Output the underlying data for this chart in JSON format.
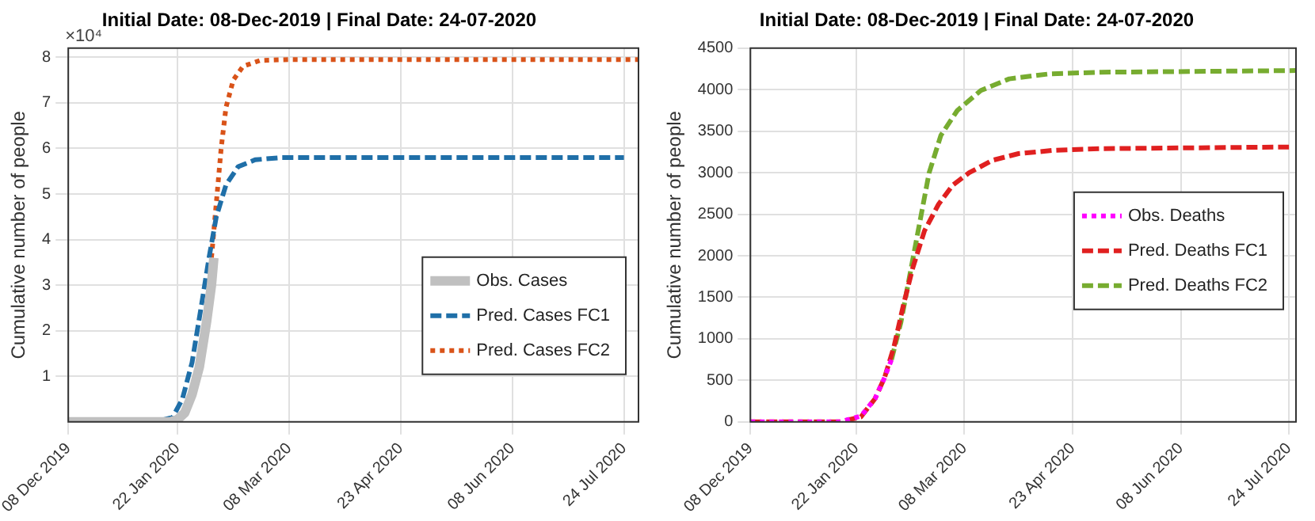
{
  "chart_data": [
    {
      "type": "line",
      "title": "Initial Date: 08-Dec-2019 | Final Date: 24-07-2020",
      "ylabel": "Cumulative number of people",
      "annotations": [
        "×10⁴"
      ],
      "grid": true,
      "legend": "bottom right",
      "xlim": [
        "2019-12-08",
        "2020-07-30"
      ],
      "xticks": [
        {
          "value": "2019-12-08",
          "label": "08 Dec 2019"
        },
        {
          "value": "2020-01-22",
          "label": "22 Jan 2020"
        },
        {
          "value": "2020-03-08",
          "label": "08 Mar 2020"
        },
        {
          "value": "2020-04-23",
          "label": "23 Apr 2020"
        },
        {
          "value": "2020-06-08",
          "label": "08 Jun 2020"
        },
        {
          "value": "2020-07-24",
          "label": "24 Jul 2020"
        }
      ],
      "ylim": [
        0,
        8.2
      ],
      "yticks": [
        1,
        2,
        3,
        4,
        5,
        6,
        7,
        8
      ],
      "series": [
        {
          "name": "Obs. Cases",
          "color": "#c0c0c0",
          "line_style": "solid",
          "x": [
            "2019-12-08",
            "2019-12-22",
            "2020-01-05",
            "2020-01-19",
            "2020-01-22",
            "2020-01-25",
            "2020-01-28",
            "2020-01-31",
            "2020-02-03",
            "2020-02-05",
            "2020-02-06"
          ],
          "values": [
            0,
            0,
            0,
            0,
            0.05,
            0.2,
            0.6,
            1.2,
            2.2,
            3.0,
            3.6
          ]
        },
        {
          "name": "Pred. Cases FC1",
          "color": "#1f6fa8",
          "line_style": "dashed",
          "x": [
            "2019-12-08",
            "2020-01-15",
            "2020-01-20",
            "2020-01-24",
            "2020-01-28",
            "2020-02-01",
            "2020-02-04",
            "2020-02-07",
            "2020-02-11",
            "2020-02-16",
            "2020-02-23",
            "2020-03-05",
            "2020-07-24"
          ],
          "values": [
            0,
            0.03,
            0.1,
            0.5,
            1.3,
            2.6,
            3.6,
            4.5,
            5.2,
            5.6,
            5.75,
            5.8,
            5.8
          ]
        },
        {
          "name": "Pred. Cases FC2",
          "color": "#d95319",
          "line_style": "dotted",
          "x": [
            "2020-02-05",
            "2020-02-07",
            "2020-02-09",
            "2020-02-11",
            "2020-02-14",
            "2020-02-18",
            "2020-02-25",
            "2020-03-08",
            "2020-07-30"
          ],
          "values": [
            3.6,
            4.8,
            6.0,
            6.9,
            7.5,
            7.8,
            7.93,
            7.95,
            7.95
          ]
        }
      ]
    },
    {
      "type": "line",
      "title": "Initial Date: 08-Dec-2019 | Final Date: 24-07-2020",
      "ylabel": "Cumulative number of people",
      "grid": true,
      "legend": "right",
      "xlim": [
        "2019-12-08",
        "2020-07-27"
      ],
      "xticks": [
        {
          "value": "2019-12-08",
          "label": "08 Dec 2019"
        },
        {
          "value": "2020-01-22",
          "label": "22 Jan 2020"
        },
        {
          "value": "2020-03-08",
          "label": "08 Mar 2020"
        },
        {
          "value": "2020-04-23",
          "label": "23 Apr 2020"
        },
        {
          "value": "2020-06-08",
          "label": "08 Jun 2020"
        },
        {
          "value": "2020-07-24",
          "label": "24 Jul 2020"
        }
      ],
      "ylim": [
        0,
        4500
      ],
      "yticks": [
        0,
        500,
        1000,
        1500,
        2000,
        2500,
        3000,
        3500,
        4000,
        4500
      ],
      "series": [
        {
          "name": "Obs. Deaths",
          "color": "#ff00ff",
          "line_style": "dotted",
          "x": [
            "2019-12-08",
            "2019-12-18",
            "2019-12-27",
            "2020-01-06",
            "2020-01-15",
            "2020-01-24",
            "2020-01-30",
            "2020-02-03",
            "2020-02-06"
          ],
          "values": [
            0,
            0,
            0,
            0,
            0,
            70,
            280,
            530,
            750
          ]
        },
        {
          "name": "Pred. Deaths FC1",
          "color": "#e02020",
          "line_style": "dashed",
          "x": [
            "2019-12-08",
            "2020-01-15",
            "2020-01-24",
            "2020-01-30",
            "2020-02-03",
            "2020-02-07",
            "2020-02-11",
            "2020-02-15",
            "2020-02-20",
            "2020-02-26",
            "2020-03-03",
            "2020-03-10",
            "2020-03-20",
            "2020-03-31",
            "2020-04-15",
            "2020-05-05",
            "2020-07-24"
          ],
          "values": [
            0,
            0,
            60,
            280,
            530,
            900,
            1400,
            1850,
            2300,
            2620,
            2850,
            3000,
            3150,
            3230,
            3270,
            3290,
            3310
          ]
        },
        {
          "name": "Pred. Deaths FC2",
          "color": "#77ac30",
          "line_style": "dashed",
          "x": [
            "2020-02-06",
            "2020-02-10",
            "2020-02-14",
            "2020-02-18",
            "2020-02-22",
            "2020-02-27",
            "2020-03-05",
            "2020-03-15",
            "2020-03-27",
            "2020-04-13",
            "2020-05-05",
            "2020-07-27"
          ],
          "values": [
            750,
            1200,
            1800,
            2400,
            3000,
            3450,
            3750,
            3990,
            4130,
            4190,
            4210,
            4230
          ]
        }
      ]
    }
  ]
}
